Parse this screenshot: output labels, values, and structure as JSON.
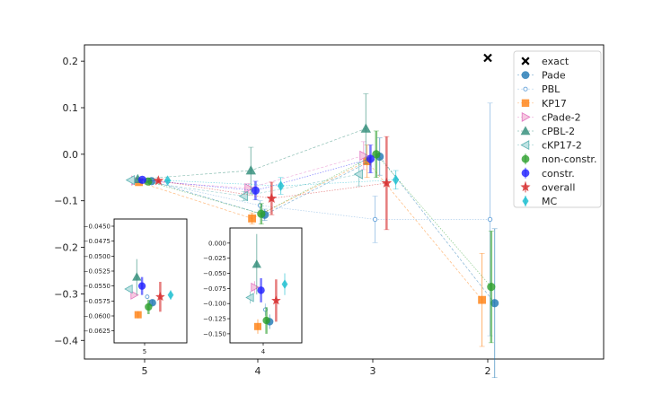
{
  "chart_data": {
    "type": "scatter",
    "title": "",
    "xlabel": "",
    "ylabel": "",
    "x_ticks": [
      "5",
      "4",
      "3",
      "2"
    ],
    "y_ticks": [
      "0.2",
      "0.1",
      "0.0",
      "−0.1",
      "−0.2",
      "−0.3",
      "−0.4"
    ],
    "ylim": [
      -0.44,
      0.235
    ],
    "legend": {
      "location": "top-right"
    },
    "exact": {
      "name": "exact",
      "color": "#000000",
      "marker": "x",
      "x": 2,
      "y": 0.207
    },
    "series": [
      {
        "name": "Pade",
        "color": "#1f77b4",
        "marker": "o",
        "offset": 0.06,
        "dashed": true,
        "points": [
          {
            "x": 5,
            "y": -0.0578,
            "err": 0.0005
          },
          {
            "x": 4,
            "y": -0.13,
            "err": 0.012
          },
          {
            "x": 3,
            "y": -0.005,
            "err": 0.04
          },
          {
            "x": 2,
            "y": -0.32,
            "err": 0.16
          }
        ]
      },
      {
        "name": "PBL",
        "color": "#6fa8dc",
        "marker": "small-o",
        "offset": 0.02,
        "dashed": false,
        "points": [
          {
            "x": 5,
            "y": -0.0568,
            "err": 0.0004
          },
          {
            "x": 4,
            "y": -0.11,
            "err": 0.01
          },
          {
            "x": 3,
            "y": -0.14,
            "err": 0.05
          },
          {
            "x": 2,
            "y": -0.14,
            "err": 0.25
          }
        ]
      },
      {
        "name": "KP17",
        "color": "#ff7f0e",
        "marker": "s",
        "offset": -0.05,
        "dashed": true,
        "points": [
          {
            "x": 5,
            "y": -0.0598,
            "err": 0.0006
          },
          {
            "x": 4,
            "y": -0.138,
            "err": 0.012
          },
          {
            "x": 3,
            "y": -0.015,
            "err": 0.035
          },
          {
            "x": 2,
            "y": -0.313,
            "err": 0.1
          }
        ]
      },
      {
        "name": "cPade-2",
        "color": "#e377c2",
        "marker": "triangle-right",
        "offset": -0.08,
        "dashed": true,
        "points": [
          {
            "x": 5,
            "y": -0.0565,
            "err": 0.0004
          },
          {
            "x": 4,
            "y": -0.073,
            "err": 0.01
          },
          {
            "x": 3,
            "y": -0.003,
            "err": 0.03
          }
        ]
      },
      {
        "name": "cPBL-2",
        "color": "#2e8b77",
        "marker": "triangle-up",
        "offset": -0.06,
        "dashed": true,
        "points": [
          {
            "x": 5,
            "y": -0.0535,
            "err": 0.003
          },
          {
            "x": 4,
            "y": -0.035,
            "err": 0.05
          },
          {
            "x": 3,
            "y": 0.055,
            "err": 0.075
          }
        ]
      },
      {
        "name": "cKP17-2",
        "color": "#5fb3b3",
        "marker": "triangle-left",
        "offset": -0.12,
        "dashed": true,
        "points": [
          {
            "x": 5,
            "y": -0.0555,
            "err": 0.0005
          },
          {
            "x": 4,
            "y": -0.09,
            "err": 0.01
          },
          {
            "x": 3,
            "y": -0.043,
            "err": 0.025
          }
        ]
      },
      {
        "name": "non-constr.",
        "color": "#2ca02c",
        "marker": "o",
        "offset": 0.03,
        "dashed": false,
        "points": [
          {
            "x": 5,
            "y": -0.0585,
            "err": 0.0012
          },
          {
            "x": 4,
            "y": -0.128,
            "err": 0.022
          },
          {
            "x": 3,
            "y": 0.0,
            "err": 0.05
          },
          {
            "x": 2,
            "y": -0.285,
            "err": 0.12
          }
        ]
      },
      {
        "name": "constr.",
        "color": "#1f1fff",
        "marker": "o",
        "offset": -0.02,
        "dashed": false,
        "points": [
          {
            "x": 5,
            "y": -0.055,
            "err": 0.0015
          },
          {
            "x": 4,
            "y": -0.078,
            "err": 0.02
          },
          {
            "x": 3,
            "y": -0.01,
            "err": 0.03
          }
        ]
      },
      {
        "name": "overall",
        "color": "#d62728",
        "marker": "star",
        "offset": 0.12,
        "dashed": false,
        "points": [
          {
            "x": 5,
            "y": -0.0568,
            "err": 0.0025
          },
          {
            "x": 4,
            "y": -0.095,
            "err": 0.035
          },
          {
            "x": 3,
            "y": -0.062,
            "err": 0.1
          }
        ]
      },
      {
        "name": "MC",
        "color": "#17becf",
        "marker": "diamond",
        "offset": 0.2,
        "dashed": false,
        "points": [
          {
            "x": 5,
            "y": -0.0565,
            "err": 0.0008
          },
          {
            "x": 4,
            "y": -0.068,
            "err": 0.018
          },
          {
            "x": 3,
            "y": -0.055,
            "err": 0.02
          }
        ]
      }
    ],
    "insets": [
      {
        "name": "inset-5",
        "xtick": "5",
        "ylim": [
          -0.0645,
          -0.0438
        ],
        "y_ticks": [
          "−0.0450",
          "−0.0475",
          "−0.0500",
          "−0.0525",
          "−0.0550",
          "−0.0575",
          "−0.0600",
          "−0.0625"
        ]
      },
      {
        "name": "inset-4",
        "xtick": "4",
        "ylim": [
          -0.165,
          0.025
        ],
        "y_ticks": [
          "0.000",
          "−0.025",
          "−0.050",
          "−0.075",
          "−0.100",
          "−0.125",
          "−0.150"
        ]
      }
    ]
  }
}
